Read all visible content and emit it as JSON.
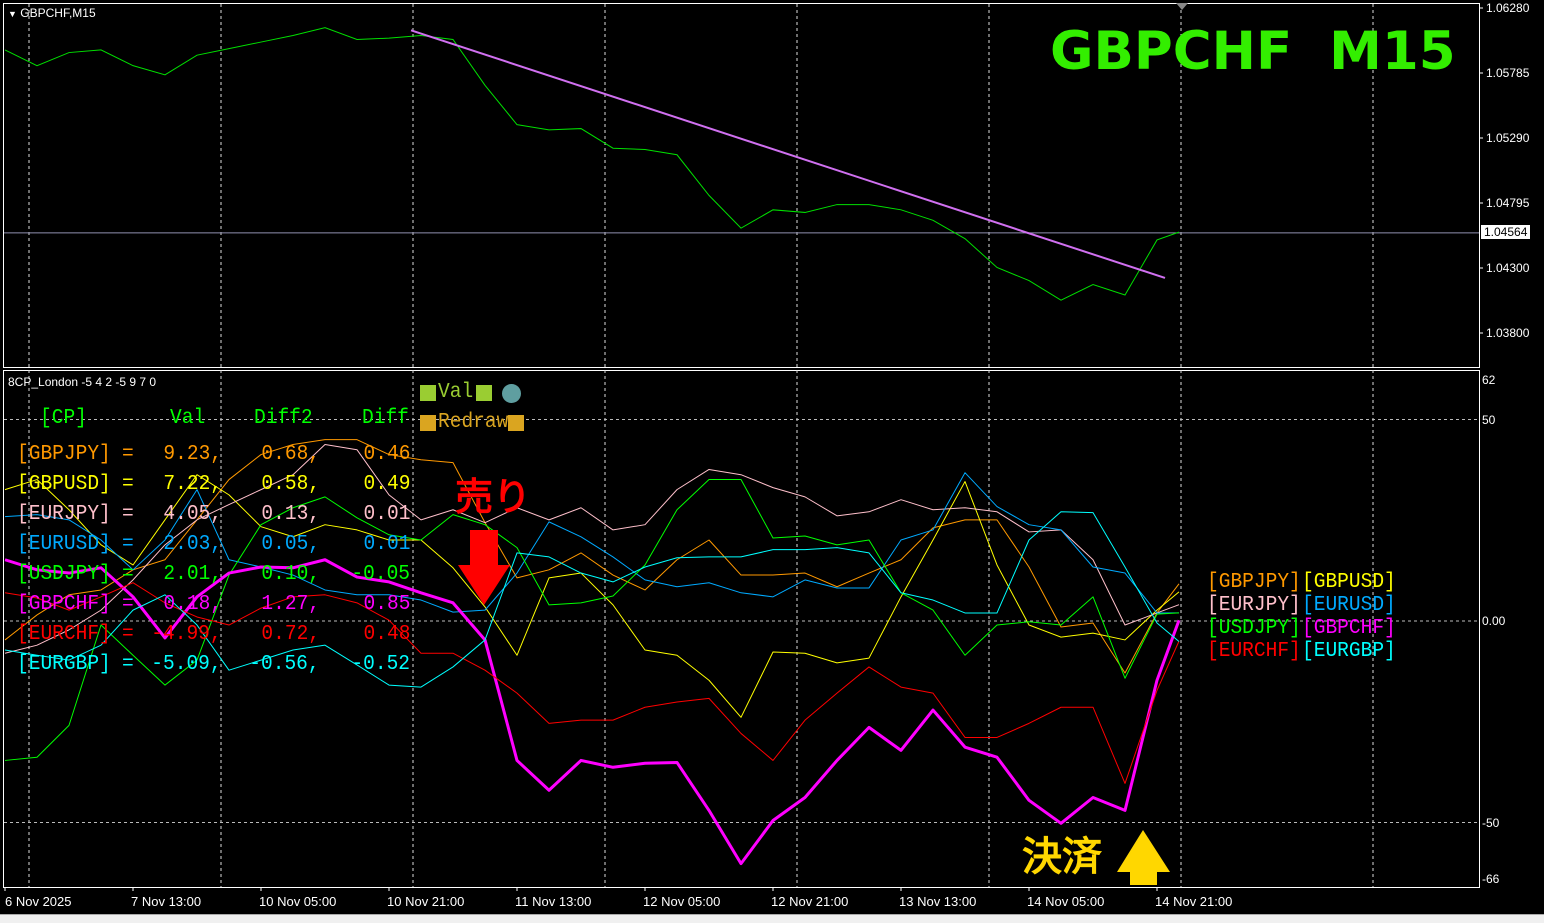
{
  "window": {
    "title": "GBPCHF,M15"
  },
  "price_panel": {
    "symbol_label": "GBPCHF  M15",
    "symbol_label_color": "#33ee00",
    "current_price": "1.04564",
    "price_ticks": [
      "1.06280",
      "1.05785",
      "1.05290",
      "1.04795",
      "1.04300",
      "1.03800"
    ]
  },
  "indicator_panel": {
    "title": "8CP_London -5 4 2 -5 9 7 0",
    "ticks": [
      "62",
      "50",
      "0.00",
      "-50",
      "-66"
    ],
    "header": {
      "cp": "[CP]",
      "val": "Val",
      "diff2": "Diff2",
      "diff": "Diff"
    },
    "buttons": {
      "val": "Val",
      "redraw": "Redraw",
      "val_color": "#9acd32",
      "redraw_color": "#daa520",
      "circle_color": "#5f9ea0"
    },
    "rows": [
      {
        "pair": "[GBPJPY]",
        "eq": "=",
        "val": "9.23,",
        "diff2": "0.68,",
        "diff": "0.46",
        "color": "#ff9900"
      },
      {
        "pair": "[GBPUSD]",
        "eq": "=",
        "val": "7.22,",
        "diff2": "0.58,",
        "diff": "0.49",
        "color": "#ffff00"
      },
      {
        "pair": "[EURJPY]",
        "eq": "=",
        "val": "4.05,",
        "diff2": "0.13,",
        "diff": "0.01",
        "color": "#ffc0cb"
      },
      {
        "pair": "[EURUSD]",
        "eq": "=",
        "val": "2.03,",
        "diff2": "0.05,",
        "diff": "0.01",
        "color": "#00aaff"
      },
      {
        "pair": "[USDJPY]",
        "eq": "=",
        "val": "2.01,",
        "diff2": "0.10,",
        "diff": "-0.05",
        "color": "#00ff00"
      },
      {
        "pair": "[GBPCHF]",
        "eq": "=",
        "val": "0.18,",
        "diff2": "1.27,",
        "diff": "0.85",
        "color": "#ff00ff"
      },
      {
        "pair": "[EURCHF]",
        "eq": "=",
        "val": "-4.99,",
        "diff2": "0.72,",
        "diff": "0.48",
        "color": "#ff0000"
      },
      {
        "pair": "[EURGBP]",
        "eq": "=",
        "val": "-5.09,",
        "diff2": "-0.56,",
        "diff": "-0.52",
        "color": "#00ffff"
      }
    ],
    "end_labels": [
      {
        "text": "[GBPJPY]",
        "color": "#ff9900"
      },
      {
        "text": "[GBPUSD]",
        "color": "#ffff00"
      },
      {
        "text": "[EURJPY]",
        "color": "#ffc0cb"
      },
      {
        "text": "[EURUSD]",
        "color": "#00aaff"
      },
      {
        "text": "[USDJPY]",
        "color": "#00ff00"
      },
      {
        "text": "[GBPCHF]",
        "color": "#ff00ff"
      },
      {
        "text": "[EURCHF]",
        "color": "#ff0000"
      },
      {
        "text": "[EURGBP]",
        "color": "#00ffff"
      }
    ],
    "annotations": {
      "sell": "売り",
      "sell_color": "#ff0000",
      "close": "決済",
      "close_color": "#ffd700"
    }
  },
  "x_ticks": [
    "6 Nov 2025",
    "7 Nov 13:00",
    "10 Nov 05:00",
    "10 Nov 21:00",
    "11 Nov 13:00",
    "12 Nov 05:00",
    "12 Nov 21:00",
    "13 Nov 13:00",
    "14 Nov 05:00",
    "14 Nov 21:00"
  ],
  "chart_data": [
    {
      "type": "line",
      "title": "GBPCHF,M15",
      "ylim": [
        1.0355,
        1.0628
      ],
      "color": "#00e000",
      "times": [
        "2025-11-06 21:00",
        "2025-11-07 01:00",
        "2025-11-07 05:00",
        "2025-11-07 09:00",
        "2025-11-07 13:00",
        "2025-11-07 17:00",
        "2025-11-07 21:00",
        "2025-11-10 01:00",
        "2025-11-10 05:00",
        "2025-11-10 09:00",
        "2025-11-10 13:00",
        "2025-11-10 17:00",
        "2025-11-10 21:00",
        "2025-11-11 01:00",
        "2025-11-11 05:00",
        "2025-11-11 09:00",
        "2025-11-11 13:00",
        "2025-11-11 17:00",
        "2025-11-11 21:00",
        "2025-11-12 01:00",
        "2025-11-12 05:00",
        "2025-11-12 09:00",
        "2025-11-12 13:00",
        "2025-11-12 17:00",
        "2025-11-12 21:00",
        "2025-11-13 01:00",
        "2025-11-13 05:00",
        "2025-11-13 09:00",
        "2025-11-13 13:00",
        "2025-11-13 17:00",
        "2025-11-13 21:00",
        "2025-11-14 01:00",
        "2025-11-14 05:00",
        "2025-11-14 09:00",
        "2025-11-14 13:00",
        "2025-11-14 17:00",
        "2025-11-14 21:00",
        "2025-11-14 23:45"
      ],
      "values": [
        1.0596,
        1.0584,
        1.0594,
        1.0596,
        1.0584,
        1.0577,
        1.0592,
        1.0597,
        1.0602,
        1.0607,
        1.0613,
        1.0604,
        1.0605,
        1.0607,
        1.0604,
        1.0569,
        1.0539,
        1.0535,
        1.0536,
        1.0521,
        1.052,
        1.0516,
        1.0485,
        1.046,
        1.0474,
        1.0472,
        1.0478,
        1.0478,
        1.0474,
        1.0466,
        1.0452,
        1.043,
        1.042,
        1.0405,
        1.0417,
        1.0409,
        1.0451,
        1.0457
      ],
      "current_price": 1.04564,
      "trendline": {
        "color": "#d070f0",
        "points": [
          [
            "2025-11-10 23:45",
            1.0611
          ],
          [
            "2025-11-14 22:00",
            1.0422
          ]
        ]
      }
    },
    {
      "type": "line",
      "title": "8CP_London -5 4 2 -5 9 7 0",
      "ylim": [
        -66,
        62
      ],
      "gridlines": [
        50,
        0,
        -50
      ],
      "times_ref": "same as price chart",
      "series": [
        {
          "name": "GBPJPY",
          "color": "#ff9900",
          "width": 1,
          "values": [
            -4.7,
            1.5,
            6.5,
            7.7,
            12.7,
            15.2,
            25.1,
            35.1,
            41.3,
            43.8,
            45.0,
            45.0,
            41.3,
            40.0,
            39.3,
            24.4,
            10.7,
            12.7,
            16.9,
            11.4,
            7.7,
            15.2,
            20.1,
            11.4,
            11.4,
            11.9,
            8.5,
            11.9,
            15.2,
            23.1,
            25.1,
            25.1,
            13.4,
            -1.5,
            -0.5,
            -12.9,
            2.0,
            9.23
          ]
        },
        {
          "name": "GBPUSD",
          "color": "#ffff00",
          "width": 1,
          "values": [
            32.6,
            35.1,
            27.6,
            18.9,
            13.9,
            25.1,
            36.3,
            31.3,
            23.4,
            20.9,
            23.9,
            22.6,
            20.1,
            20.1,
            13.2,
            3.5,
            -8.5,
            10.7,
            11.9,
            4.0,
            -7.2,
            -8.5,
            -14.7,
            -23.9,
            -7.7,
            -8.0,
            -10.4,
            -9.2,
            6.0,
            20.1,
            34.6,
            13.9,
            -1.0,
            -4.0,
            -3.0,
            -4.7,
            2.7,
            7.22
          ]
        },
        {
          "name": "EURJPY",
          "color": "#ffc0cb",
          "width": 1,
          "values": [
            -8.0,
            -6.0,
            -2.2,
            2.7,
            10.2,
            18.9,
            25.1,
            28.9,
            32.6,
            36.3,
            43.8,
            42.5,
            31.3,
            25.1,
            27.6,
            24.4,
            28.1,
            25.1,
            28.1,
            22.6,
            23.9,
            32.6,
            37.6,
            36.3,
            33.1,
            30.8,
            26.1,
            27.1,
            30.1,
            27.6,
            28.1,
            27.1,
            22.1,
            22.6,
            15.2,
            -1.0,
            2.0,
            4.05
          ]
        },
        {
          "name": "EURUSD",
          "color": "#00aaff",
          "width": 1,
          "values": [
            25.9,
            26.4,
            25.1,
            20.1,
            12.7,
            20.1,
            32.6,
            15.2,
            13.4,
            11.4,
            7.7,
            6.5,
            6.5,
            5.2,
            2.2,
            2.7,
            11.9,
            24.6,
            20.9,
            15.9,
            10.2,
            8.5,
            9.5,
            7.0,
            6.0,
            10.2,
            8.2,
            8.2,
            20.1,
            22.6,
            36.8,
            28.4,
            23.9,
            22.6,
            13.4,
            11.9,
            2.0,
            2.03
          ]
        },
        {
          "name": "USDJPY",
          "color": "#00ff00",
          "width": 1,
          "values": [
            -34.6,
            -33.8,
            -25.9,
            -1.0,
            -8.5,
            -15.9,
            -9.7,
            11.4,
            23.9,
            28.1,
            30.8,
            25.6,
            21.4,
            20.1,
            26.4,
            23.9,
            18.2,
            4.0,
            4.5,
            6.2,
            13.9,
            27.6,
            35.1,
            35.1,
            20.6,
            21.1,
            18.9,
            20.1,
            7.0,
            2.7,
            -8.5,
            -1.0,
            -0.2,
            -1.0,
            6.0,
            -14.2,
            1.7,
            2.01
          ]
        },
        {
          "name": "GBPCHF",
          "color": "#ff00ff",
          "width": 3,
          "values": [
            15.2,
            12.7,
            11.9,
            13.2,
            6.0,
            -4.2,
            6.0,
            11.9,
            13.4,
            13.2,
            15.2,
            10.9,
            9.7,
            7.0,
            4.5,
            -4.7,
            -34.6,
            -42.0,
            -34.6,
            -36.3,
            -35.3,
            -35.1,
            -47.0,
            -60.2,
            -49.5,
            -43.8,
            -34.6,
            -26.4,
            -32.1,
            -22.1,
            -31.3,
            -33.8,
            -44.5,
            -50.2,
            -43.8,
            -47.0,
            -14.7,
            0.18
          ]
        },
        {
          "name": "EURCHF",
          "color": "#ff0000",
          "width": 1,
          "values": [
            7.0,
            5.7,
            2.7,
            6.0,
            9.5,
            4.5,
            1.0,
            -1.0,
            3.2,
            6.0,
            6.5,
            4.5,
            0.2,
            -8.0,
            -8.0,
            -12.2,
            -17.9,
            -25.4,
            -24.6,
            -24.6,
            -21.4,
            -20.1,
            -19.2,
            -27.9,
            -34.6,
            -24.6,
            -17.9,
            -11.4,
            -16.4,
            -17.9,
            -28.9,
            -28.9,
            -25.4,
            -21.4,
            -21.4,
            -40.3,
            -17.2,
            -4.99
          ]
        },
        {
          "name": "EURGBP",
          "color": "#00ffff",
          "width": 1,
          "values": [
            -7.2,
            -8.5,
            -9.7,
            -6.0,
            2.7,
            6.5,
            -1.0,
            -12.2,
            -9.7,
            -7.2,
            -6.0,
            -10.9,
            -15.9,
            -16.4,
            -11.4,
            -4.7,
            16.9,
            15.9,
            11.9,
            9.7,
            13.4,
            15.7,
            15.9,
            15.9,
            17.7,
            17.7,
            18.2,
            16.9,
            7.0,
            5.2,
            2.0,
            2.0,
            20.1,
            27.1,
            26.9,
            13.4,
            -0.5,
            -5.09
          ]
        }
      ]
    }
  ]
}
